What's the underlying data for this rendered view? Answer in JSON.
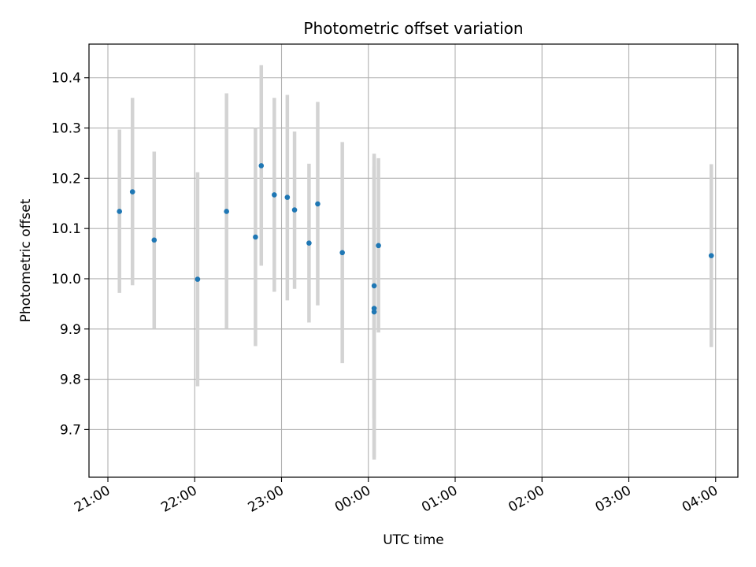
{
  "chart_data": {
    "type": "scatter",
    "title": "Photometric offset variation",
    "xlabel": "UTC time",
    "ylabel": "Photometric offset",
    "x_axis_type": "time",
    "x_tick_labels": [
      "21:00",
      "22:00",
      "23:00",
      "00:00",
      "01:00",
      "02:00",
      "03:00",
      "04:00"
    ],
    "y_ticks": [
      9.7,
      9.8,
      9.9,
      10.0,
      10.1,
      10.2,
      10.3,
      10.4
    ],
    "y_tick_labels": [
      "9.7",
      "9.8",
      "9.9",
      "10.0",
      "10.1",
      "10.2",
      "10.3",
      "10.4"
    ],
    "ylim": [
      9.605,
      10.467
    ],
    "grid": true,
    "colors": {
      "points": "#1f77b4",
      "errorbars": "#d3d3d3",
      "grid": "#b0b0b0"
    },
    "points": [
      {
        "x": "21:08",
        "y": 10.134,
        "err_low": 9.972,
        "err_high": 10.297
      },
      {
        "x": "21:17",
        "y": 10.173,
        "err_low": 9.987,
        "err_high": 10.36
      },
      {
        "x": "21:32",
        "y": 10.077,
        "err_low": 9.9,
        "err_high": 10.253
      },
      {
        "x": "22:02",
        "y": 9.999,
        "err_low": 9.786,
        "err_high": 10.212
      },
      {
        "x": "22:22",
        "y": 10.134,
        "err_low": 9.9,
        "err_high": 10.369
      },
      {
        "x": "22:42",
        "y": 10.083,
        "err_low": 9.866,
        "err_high": 10.3
      },
      {
        "x": "22:46",
        "y": 10.225,
        "err_low": 10.026,
        "err_high": 10.425
      },
      {
        "x": "22:55",
        "y": 10.167,
        "err_low": 9.974,
        "err_high": 10.36
      },
      {
        "x": "23:04",
        "y": 10.162,
        "err_low": 9.957,
        "err_high": 10.366
      },
      {
        "x": "23:09",
        "y": 10.137,
        "err_low": 9.98,
        "err_high": 10.293
      },
      {
        "x": "23:19",
        "y": 10.071,
        "err_low": 9.913,
        "err_high": 10.229
      },
      {
        "x": "23:25",
        "y": 10.149,
        "err_low": 9.947,
        "err_high": 10.352
      },
      {
        "x": "23:42",
        "y": 10.052,
        "err_low": 9.832,
        "err_high": 10.272
      },
      {
        "x": "00:04",
        "y": 9.986,
        "err_low": 9.722,
        "err_high": 10.249
      },
      {
        "x": "00:04",
        "y": 9.941,
        "err_low": 9.64,
        "err_high": 10.243
      },
      {
        "x": "00:04",
        "y": 9.934,
        "err_low": 9.645,
        "err_high": 10.223
      },
      {
        "x": "00:07",
        "y": 10.066,
        "err_low": 9.893,
        "err_high": 10.24
      },
      {
        "x": "03:57",
        "y": 10.046,
        "err_low": 9.864,
        "err_high": 10.228
      }
    ]
  }
}
